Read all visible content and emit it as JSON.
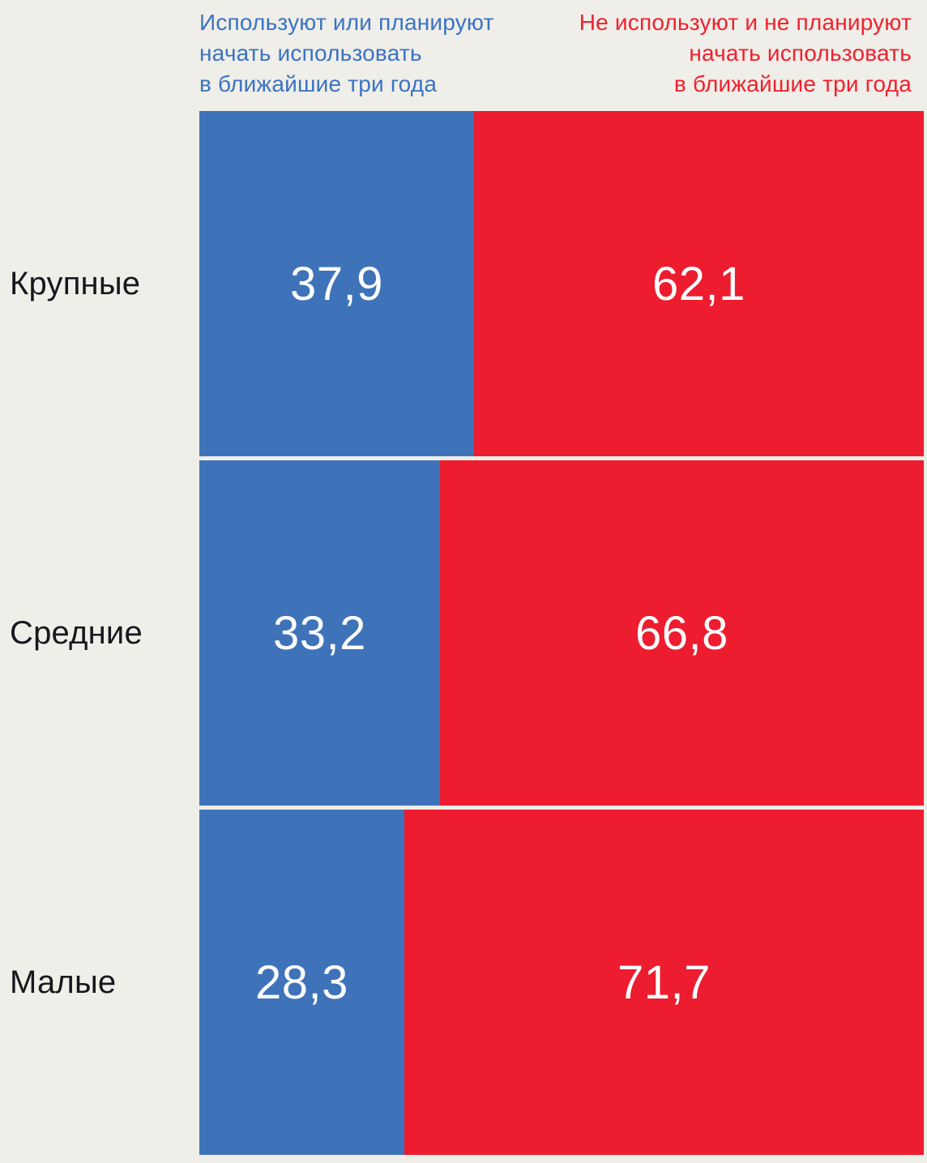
{
  "chart_data": {
    "type": "bar",
    "subtype": "horizontal-stacked-100pct",
    "categories": [
      "Крупные",
      "Средние",
      "Малые"
    ],
    "series": [
      {
        "name": "Используют или планируют начать использовать в ближайшие три года",
        "values": [
          37.9,
          33.2,
          28.3
        ],
        "color": "#3E73BA"
      },
      {
        "name": "Не используют и не планируют начать использовать в ближайшие три года",
        "values": [
          62.1,
          66.8,
          71.7
        ],
        "color": "#ED1C2E"
      }
    ],
    "xlim": [
      0,
      100
    ],
    "grid": false,
    "legend_position": "top",
    "value_label_format": "comma-decimal"
  },
  "legend": {
    "left": {
      "line1": "Используют или планируют",
      "line2": "начать использовать",
      "line3": "в ближайшие три года",
      "color": "#3A73C3"
    },
    "right": {
      "line1": "Не используют и не планируют",
      "line2": "начать использовать",
      "line3": "в ближайшие три года",
      "color": "#F2202F"
    }
  },
  "rows": [
    {
      "label": "Крупные",
      "blue_pct": 37.9,
      "red_pct": 62.1,
      "blue_label": "37,9",
      "red_label": "62,1"
    },
    {
      "label": "Средние",
      "blue_pct": 33.2,
      "red_pct": 66.8,
      "blue_label": "33,2",
      "red_label": "66,8"
    },
    {
      "label": "Малые",
      "blue_pct": 28.3,
      "red_pct": 71.7,
      "blue_label": "28,3",
      "red_label": "71,7"
    }
  ],
  "colors": {
    "background": "#EFEEE8",
    "bar_blue": "#3E73BA",
    "bar_red": "#ED1C2E",
    "legend_blue": "#3A73C3",
    "legend_red": "#F2202F",
    "value_text": "#FFFFFF",
    "category_text": "#17171D"
  }
}
